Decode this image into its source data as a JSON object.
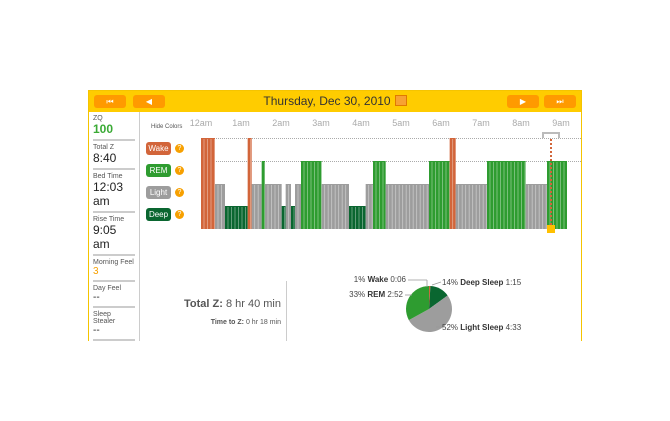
{
  "header": {
    "title": "Thursday, Dec 30, 2010",
    "nav": {
      "first": "⏮",
      "prev": "◀",
      "next": "▶",
      "last": "⏭"
    }
  },
  "stats": [
    {
      "label": "ZQ",
      "value": "100",
      "color": "#3aaa35"
    },
    {
      "label": "Total Z",
      "value": "8:40"
    },
    {
      "label": "Bed Time",
      "value": "12:03 am"
    },
    {
      "label": "Rise Time",
      "value": "9:05 am"
    },
    {
      "label": "Morning Feel",
      "value": "3",
      "color": "#f7a000"
    },
    {
      "label": "Day Feel",
      "value": "--"
    },
    {
      "label": "Sleep Stealer",
      "value": "--"
    }
  ],
  "hide_colors": "Hide Colors",
  "legend": [
    {
      "label": "Wake",
      "color": "#d2653a"
    },
    {
      "label": "REM",
      "color": "#2e9c30"
    },
    {
      "label": "Light",
      "color": "#9d9d9d"
    },
    {
      "label": "Deep",
      "color": "#0a6630"
    }
  ],
  "help": "?",
  "summary": {
    "total_label": "Total Z:",
    "total_value": "8 hr 40 min",
    "ttz_label": "Time to Z:",
    "ttz_value": "0 hr 18 min"
  },
  "chart_data": [
    {
      "type": "hypnogram",
      "ticks": [
        "12am",
        "1am",
        "2am",
        "3am",
        "4am",
        "5am",
        "6am",
        "7am",
        "8am",
        "9am"
      ],
      "levels": [
        "Wake",
        "REM",
        "Light",
        "Deep"
      ],
      "segments": [
        [
          "Wake",
          "0:00",
          "0:21"
        ],
        [
          "Light",
          "0:21",
          "0:36"
        ],
        [
          "Deep",
          "0:36",
          "1:10"
        ],
        [
          "Wake",
          "1:10",
          "1:16"
        ],
        [
          "Light",
          "1:16",
          "1:31"
        ],
        [
          "REM",
          "1:31",
          "1:36"
        ],
        [
          "Light",
          "1:36",
          "2:01"
        ],
        [
          "Deep",
          "2:01",
          "2:07"
        ],
        [
          "Light",
          "2:07",
          "2:15"
        ],
        [
          "Deep",
          "2:15",
          "2:21"
        ],
        [
          "Light",
          "2:21",
          "2:30"
        ],
        [
          "REM",
          "2:30",
          "3:01"
        ],
        [
          "Light",
          "3:01",
          "3:42"
        ],
        [
          "Deep",
          "3:42",
          "4:07"
        ],
        [
          "Light",
          "4:07",
          "4:18"
        ],
        [
          "REM",
          "4:18",
          "4:37"
        ],
        [
          "Light",
          "4:37",
          "5:42"
        ],
        [
          "REM",
          "5:42",
          "6:13"
        ],
        [
          "Wake",
          "6:13",
          "6:22"
        ],
        [
          "Light",
          "6:22",
          "7:09"
        ],
        [
          "REM",
          "7:09",
          "8:07"
        ],
        [
          "Light",
          "8:07",
          "8:39"
        ],
        [
          "REM",
          "8:39",
          "9:09"
        ]
      ],
      "marker": "8:45"
    },
    {
      "type": "pie",
      "slices": [
        {
          "pct": "1%",
          "name": "Wake",
          "time": "0:06",
          "value": 1,
          "color": "#d2653a"
        },
        {
          "pct": "14%",
          "name": "Deep Sleep",
          "time": "1:15",
          "value": 14,
          "color": "#0a6630"
        },
        {
          "pct": "52%",
          "name": "Light Sleep",
          "time": "4:33",
          "value": 52,
          "color": "#9d9d9d"
        },
        {
          "pct": "33%",
          "name": "REM",
          "time": "2:52",
          "value": 33,
          "color": "#2e9c30"
        }
      ]
    }
  ]
}
